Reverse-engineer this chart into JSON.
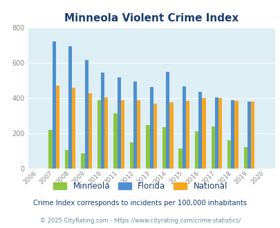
{
  "title": "Minneola Violent Crime Index",
  "years": [
    2006,
    2007,
    2008,
    2009,
    2010,
    2011,
    2012,
    2013,
    2014,
    2015,
    2016,
    2017,
    2018,
    2019,
    2020
  ],
  "minneola": [
    0,
    218,
    108,
    85,
    388,
    315,
    148,
    247,
    237,
    113,
    212,
    238,
    160,
    122,
    0
  ],
  "florida": [
    0,
    722,
    692,
    613,
    543,
    516,
    495,
    462,
    547,
    468,
    433,
    405,
    388,
    380,
    0
  ],
  "national": [
    0,
    470,
    458,
    427,
    402,
    388,
    388,
    368,
    376,
    383,
    399,
    399,
    383,
    379,
    0
  ],
  "minneola_color": "#8dc63f",
  "florida_color": "#4d90d0",
  "national_color": "#f5a623",
  "bg_color": "#ddeef5",
  "ylim": [
    0,
    800
  ],
  "yticks": [
    0,
    200,
    400,
    600,
    800
  ],
  "subtitle": "Crime Index corresponds to incidents per 100,000 inhabitants",
  "footer": "© 2025 CityRating.com - https://www.cityrating.com/crime-statistics/",
  "legend_labels": [
    "Minneola",
    "Florida",
    "National"
  ],
  "title_color": "#1a3c6e",
  "subtitle_color": "#1a3c6e",
  "footer_color": "#6688aa"
}
